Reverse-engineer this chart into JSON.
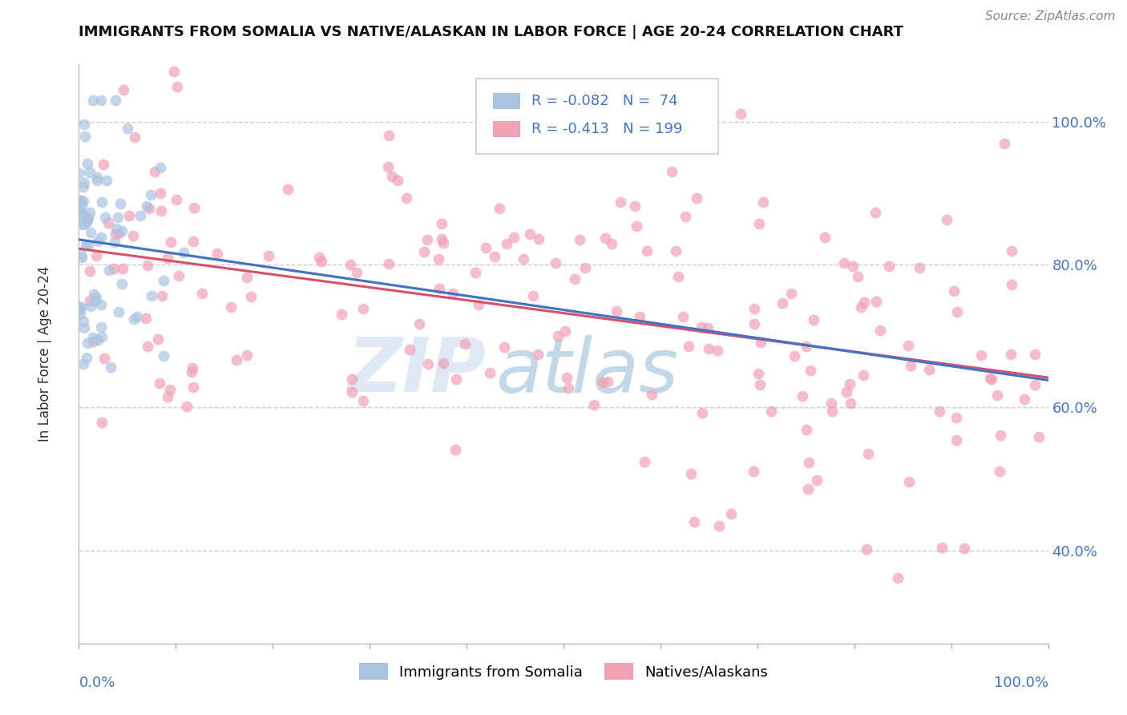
{
  "title": "IMMIGRANTS FROM SOMALIA VS NATIVE/ALASKAN IN LABOR FORCE | AGE 20-24 CORRELATION CHART",
  "source_text": "Source: ZipAtlas.com",
  "ylabel": "In Labor Force | Age 20-24",
  "legend_r1": "R = -0.082",
  "legend_n1": "N =  74",
  "legend_r2": "R = -0.413",
  "legend_n2": "N = 199",
  "somalia_color": "#aac4e0",
  "native_color": "#f2a0b5",
  "trendline_somalia_color": "#4472c4",
  "trendline_native_color": "#d9506a",
  "trendline_somalia_dashed_color": "#7090c8",
  "watermark_zip": "ZIP",
  "watermark_atlas": "atlas",
  "watermark_color_zip": "#c5d8ee",
  "watermark_color_atlas": "#8fb8d8",
  "background_color": "#ffffff",
  "grid_color": "#cccccc",
  "xlim": [
    0.0,
    1.0
  ],
  "ylim": [
    0.27,
    1.08
  ],
  "right_ytick_vals": [
    1.0,
    0.8,
    0.6,
    0.4
  ],
  "right_ytick_labels": [
    "100.0%",
    "80.0%",
    "60.0%",
    "40.0%"
  ],
  "title_fontsize": 13,
  "axis_label_fontsize": 12,
  "tick_fontsize": 13,
  "scatter_size": 100,
  "scatter_alpha": 0.7
}
